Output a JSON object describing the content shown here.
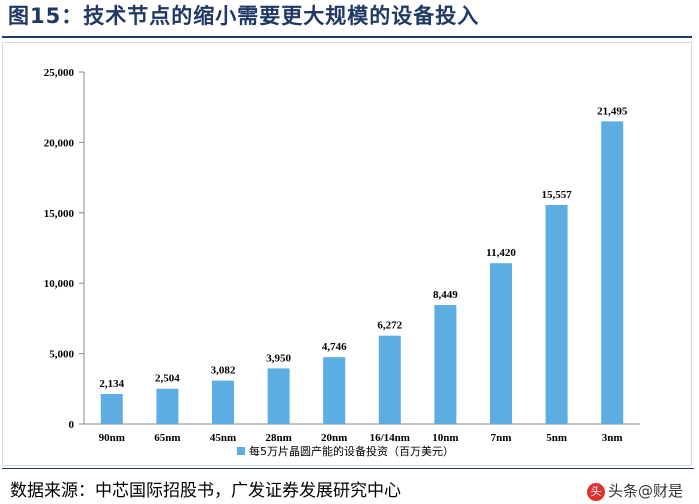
{
  "header": {
    "title": "图15：技术节点的缩小需要更大规模的设备投入"
  },
  "footer": {
    "source": "数据来源：中芯国际招股书，广发证券发展研究中心",
    "watermark": "头条@财是",
    "watermark_badge": "头"
  },
  "colors": {
    "bar": "#5dade2",
    "axis": "#888888",
    "title": "#1f3864"
  },
  "chart_data": {
    "type": "bar",
    "categories": [
      "90nm",
      "65nm",
      "45nm",
      "28nm",
      "20nm",
      "16/14nm",
      "10nm",
      "7nm",
      "5nm",
      "3nm"
    ],
    "series": [
      {
        "name": "每5万片晶圆产能的设备投资（百万美元）",
        "values": [
          2134,
          2504,
          3082,
          3950,
          4746,
          6272,
          8449,
          11420,
          15557,
          21495
        ]
      }
    ],
    "value_labels": [
      "2,134",
      "2,504",
      "3,082",
      "3,950",
      "4,746",
      "6,272",
      "8,449",
      "11,420",
      "15,557",
      "21,495"
    ],
    "yticks": [
      0,
      5000,
      10000,
      15000,
      20000,
      25000
    ],
    "ytick_labels": [
      "0",
      "5,000",
      "10,000",
      "15,000",
      "20,000",
      "25,000"
    ],
    "ylim": [
      0,
      25000
    ],
    "title": "",
    "xlabel": "",
    "ylabel": "",
    "grid": false,
    "legend_position": "bottom"
  }
}
